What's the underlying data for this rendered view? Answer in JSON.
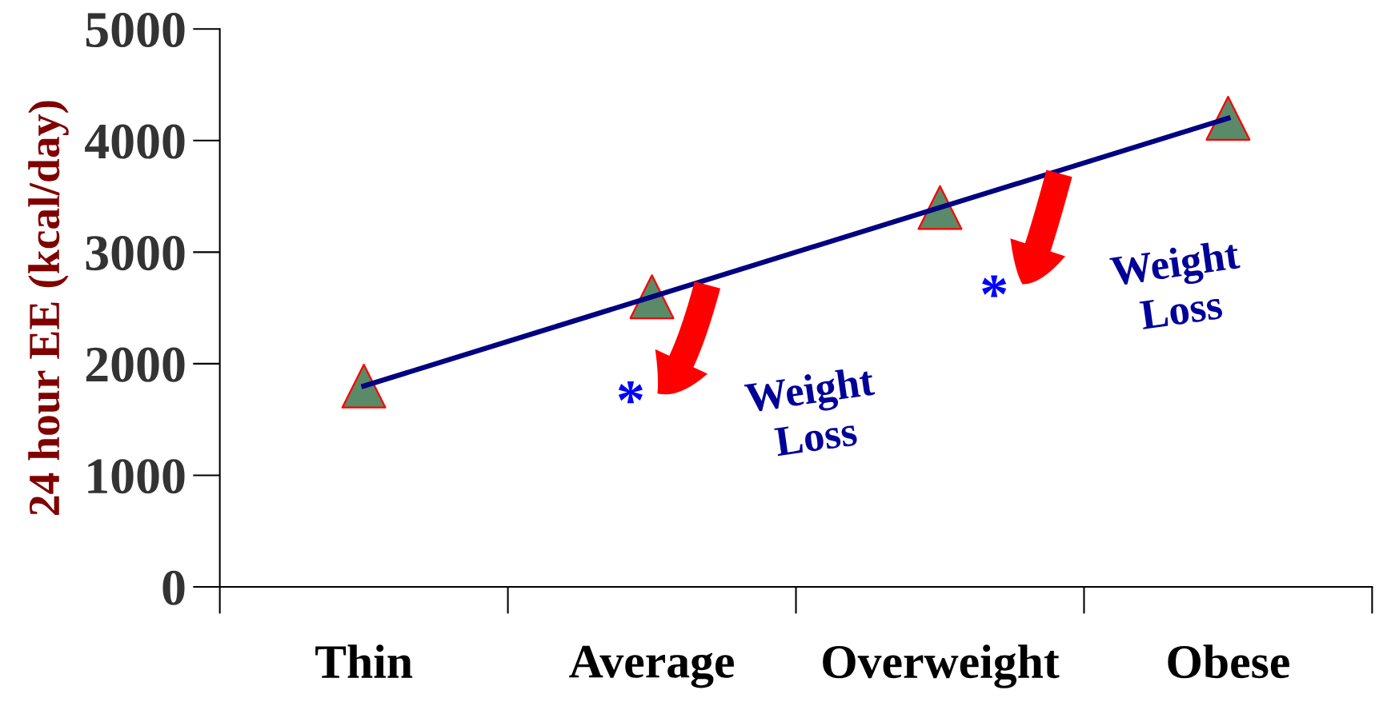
{
  "chart_data": {
    "type": "line",
    "ylabel": "24 hour EE (kcal/day)",
    "categories": [
      "Thin",
      "Average",
      "Overweight",
      "Obese"
    ],
    "series": [
      {
        "color": "#000080",
        "values": [
          1800,
          2600,
          3400,
          4200
        ],
        "marker": "none"
      },
      {
        "type": "scatter",
        "color": "#5a8a68",
        "values": [
          1800,
          2600,
          3400,
          4200
        ],
        "marker": "triangle"
      }
    ],
    "ylim": [
      0,
      5000
    ],
    "yticks": [
      0,
      1000,
      2000,
      3000,
      4000,
      5000
    ],
    "grid": false,
    "annotations": [
      "*",
      "*",
      "Weight\nLoss",
      "Weight\nLoss"
    ]
  }
}
